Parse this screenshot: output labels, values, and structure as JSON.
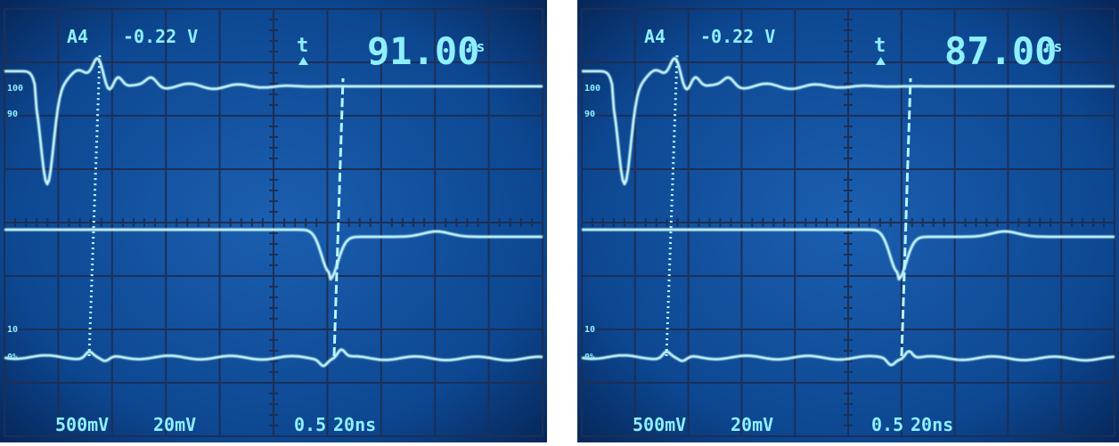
{
  "screens": [
    {
      "channel": "A4",
      "voltage": "-0.22 V",
      "delta_symbol": "t",
      "time": "91.00",
      "time_unit": "ns",
      "left_labels": [
        "100",
        "90",
        "10",
        "0%"
      ],
      "bottom_labels": [
        "500mV",
        "20mV",
        "0.5",
        "20ns"
      ]
    },
    {
      "channel": "A4",
      "voltage": "-0.22 V",
      "delta_symbol": "t",
      "time": "87.00",
      "time_unit": "ns",
      "left_labels": [
        "100",
        "90",
        "10",
        "0%"
      ],
      "bottom_labels": [
        "500mV",
        "20mV",
        "0.5",
        "20ns"
      ]
    }
  ]
}
